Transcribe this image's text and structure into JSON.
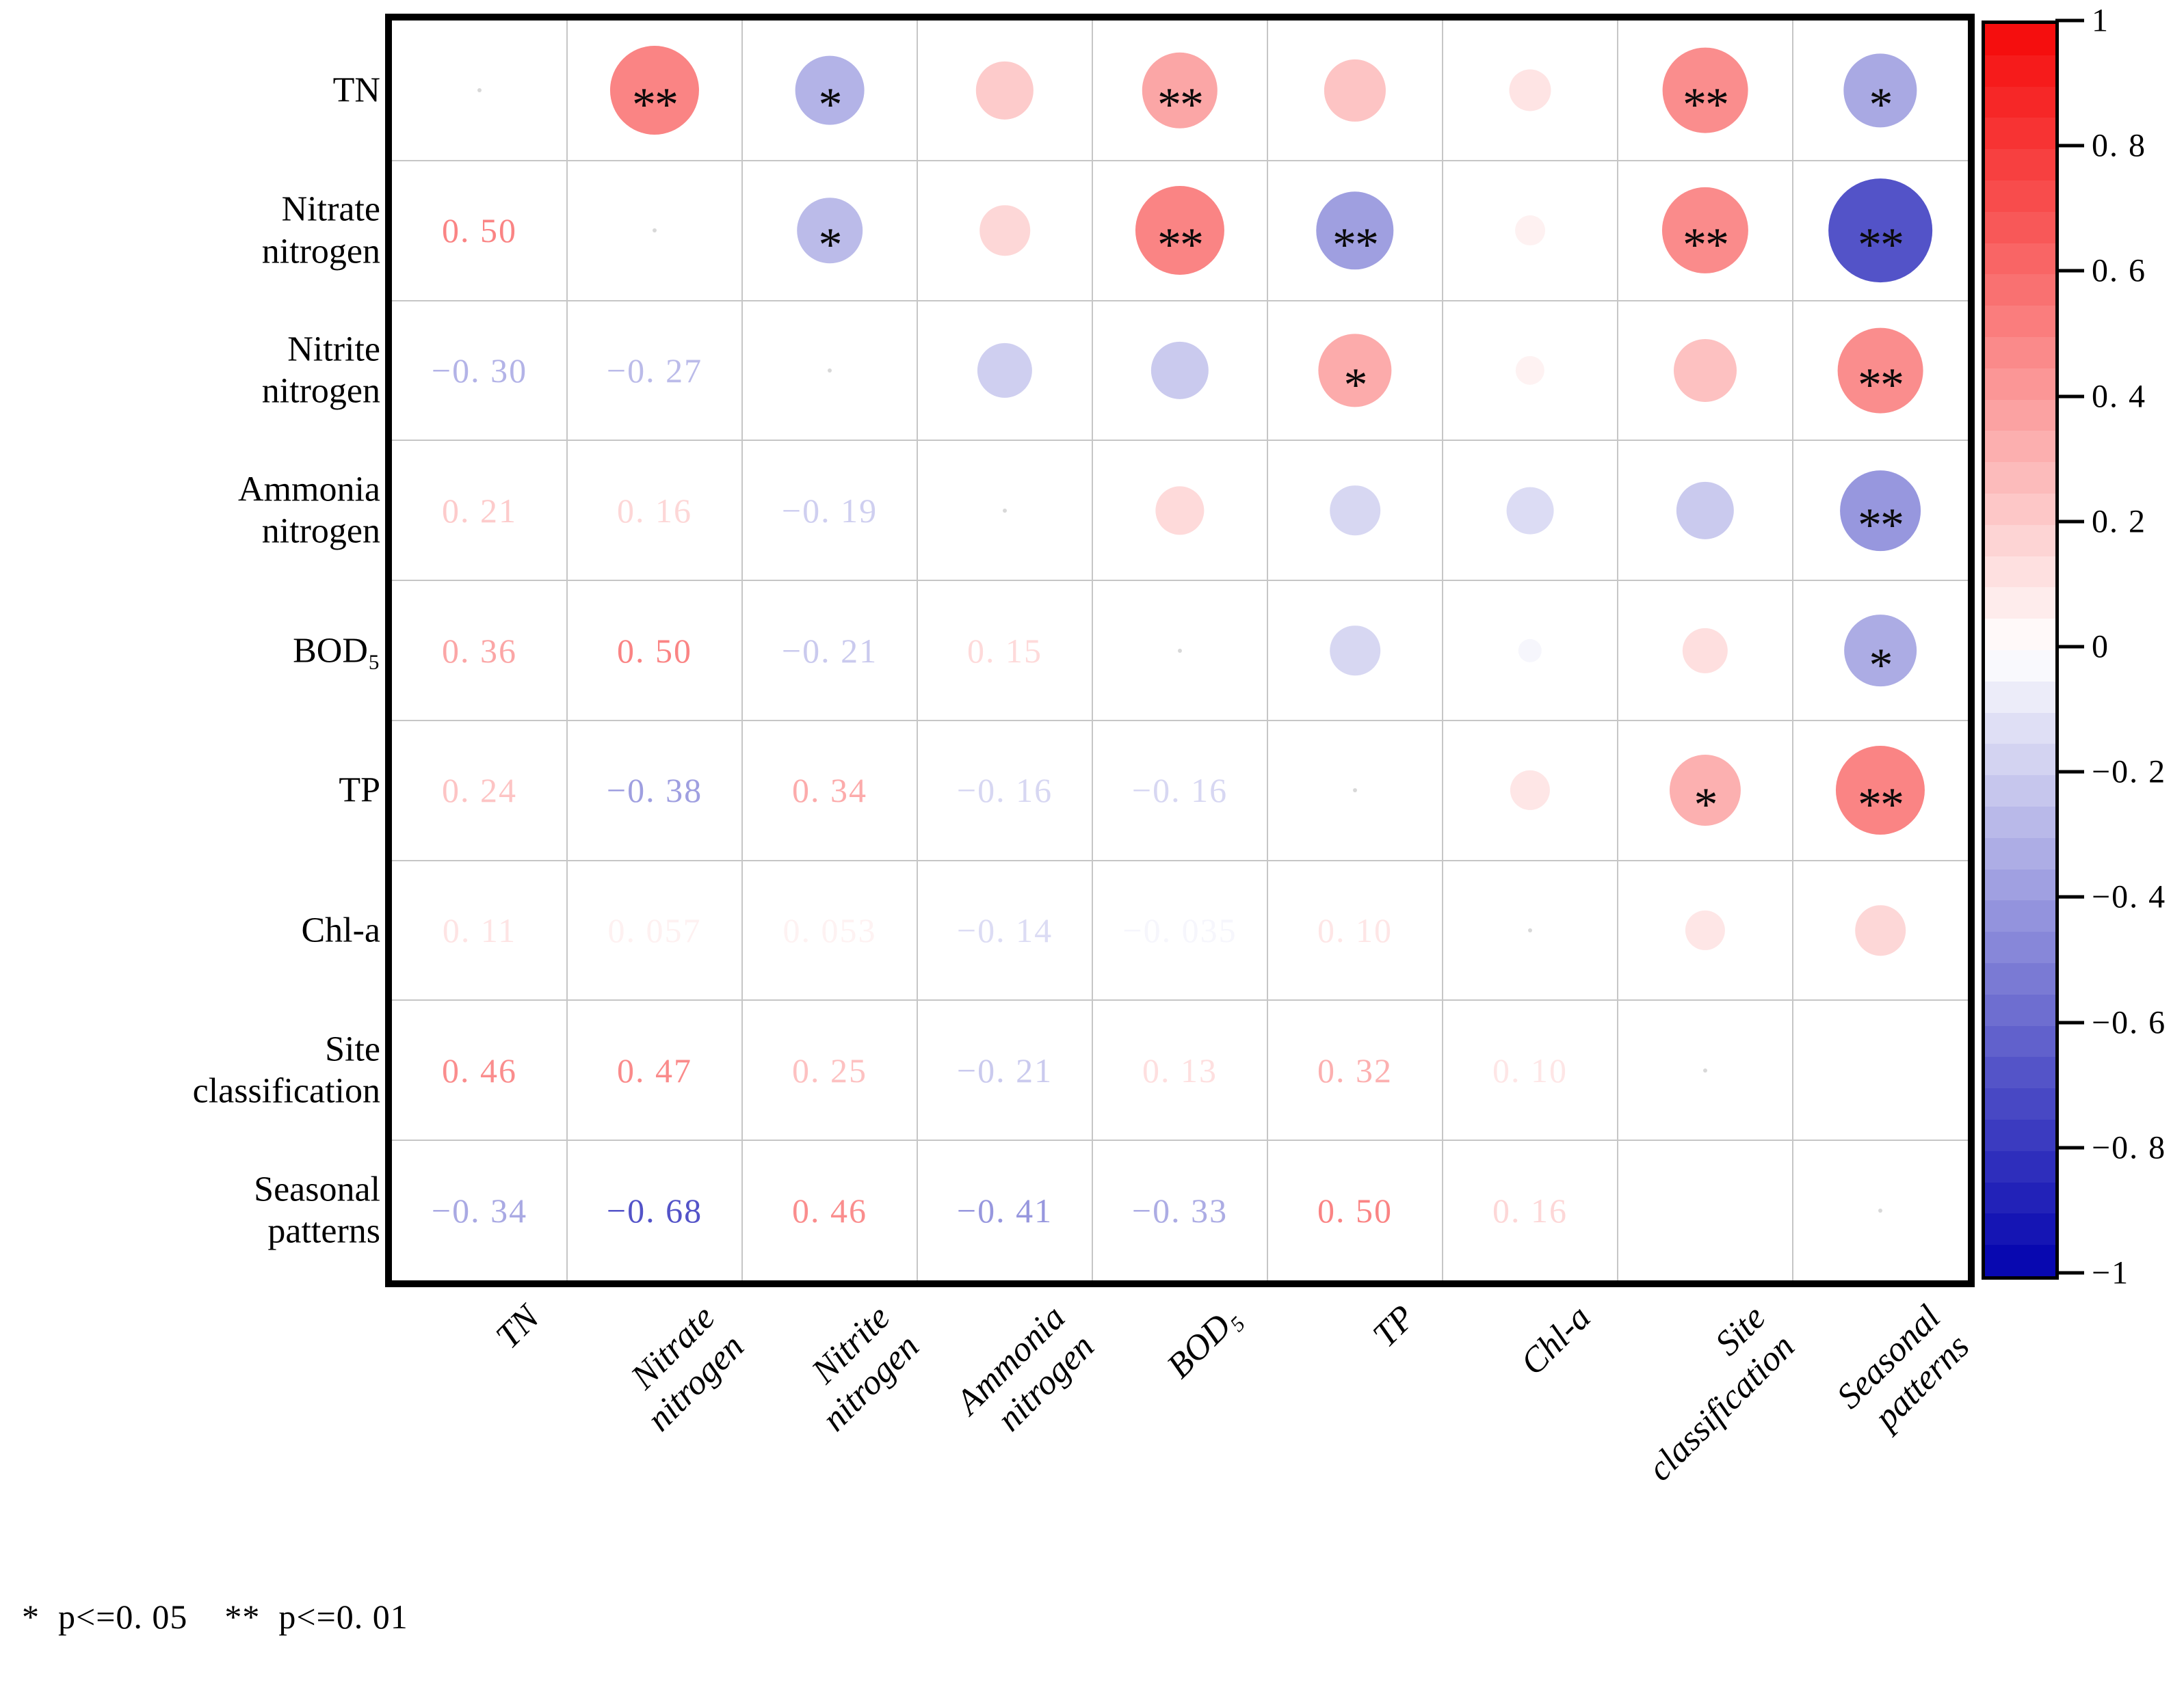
{
  "figure": {
    "background": "#ffffff",
    "footnote": "*  p<=0. 05    **  p<=0. 01"
  },
  "chart_data": {
    "type": "correlation-bubble-matrix",
    "description": "Lower triangle shows Pearson correlation values; upper triangle shows circles sized/colored by correlation with significance stars.",
    "variables": [
      "TN",
      "Nitrate nitrogen",
      "Nitrite nitrogen",
      "Ammonia nitrogen",
      "BOD₅",
      "TP",
      "Chl-a",
      "Site classification",
      "Seasonal patterns"
    ],
    "row_labels_lines": [
      [
        "TN"
      ],
      [
        "Nitrate",
        "nitrogen"
      ],
      [
        "Nitrite",
        "nitrogen"
      ],
      [
        "Ammonia",
        "nitrogen"
      ],
      [
        "BOD₅"
      ],
      [
        "TP"
      ],
      [
        "Chl-a"
      ],
      [
        "Site",
        "classification"
      ],
      [
        "Seasonal",
        "patterns"
      ]
    ],
    "col_labels_lines": [
      [
        "TN"
      ],
      [
        "Nitrate",
        "nitrogen"
      ],
      [
        "Nitrite",
        "nitrogen"
      ],
      [
        "Ammonia",
        "nitrogen"
      ],
      [
        "BOD₅"
      ],
      [
        "TP"
      ],
      [
        "Chl-a"
      ],
      [
        "Site",
        "classification"
      ],
      [
        "Seasonal",
        "patterns"
      ]
    ],
    "lower_triangle_values": [
      [
        0.5
      ],
      [
        -0.3,
        -0.27
      ],
      [
        0.21,
        0.16,
        -0.19
      ],
      [
        0.36,
        0.5,
        -0.21,
        0.15
      ],
      [
        0.24,
        -0.38,
        0.34,
        -0.16,
        -0.16
      ],
      [
        0.11,
        0.057,
        0.053,
        -0.14,
        -0.035,
        0.1
      ],
      [
        0.46,
        0.47,
        0.25,
        -0.21,
        0.13,
        0.32,
        0.1
      ],
      [
        -0.34,
        -0.68,
        0.46,
        -0.41,
        -0.33,
        0.5,
        0.16,
        0
      ]
    ],
    "lower_triangle_display": [
      [
        "0. 50"
      ],
      [
        "−0. 30",
        "−0. 27"
      ],
      [
        "0. 21",
        "0. 16",
        "−0. 19"
      ],
      [
        "0. 36",
        "0. 50",
        "−0. 21",
        "0. 15"
      ],
      [
        "0. 24",
        "−0. 38",
        "0. 34",
        "−0. 16",
        "−0. 16"
      ],
      [
        "0. 11",
        "0. 057",
        "0. 053",
        "−0. 14",
        "−0. 035",
        "0. 10"
      ],
      [
        "0. 46",
        "0. 47",
        "0. 25",
        "−0. 21",
        "0. 13",
        "0. 32",
        "0. 10"
      ],
      [
        "−0. 34",
        "−0. 68",
        "0. 46",
        "−0. 41",
        "−0. 33",
        "0. 50",
        "0. 16",
        ""
      ]
    ],
    "significance_pairs": [
      [
        "**"
      ],
      [
        "*",
        "*"
      ],
      [
        "",
        "",
        ""
      ],
      [
        "**",
        "**",
        "",
        ""
      ],
      [
        "",
        "**",
        "*",
        "",
        ""
      ],
      [
        "",
        "",
        "",
        "",
        "",
        ""
      ],
      [
        "**",
        "**",
        "",
        "",
        "",
        "*",
        ""
      ],
      [
        "*",
        "**",
        "**",
        "**",
        "*",
        "**",
        "",
        ""
      ]
    ],
    "colormap": {
      "positive_max": "#f50808",
      "zero": "#ffffff",
      "negative_max": "#0202ae"
    },
    "colorbar_ticks": [
      {
        "value": 1,
        "label": "1"
      },
      {
        "value": 0.8,
        "label": "0. 8"
      },
      {
        "value": 0.6,
        "label": "0. 6"
      },
      {
        "value": 0.4,
        "label": "0. 4"
      },
      {
        "value": 0.2,
        "label": "0. 2"
      },
      {
        "value": 0,
        "label": "0"
      },
      {
        "value": -0.2,
        "label": "−0. 2"
      },
      {
        "value": -0.4,
        "label": "−0. 4"
      },
      {
        "value": -0.6,
        "label": "−0. 6"
      },
      {
        "value": -0.8,
        "label": "−0. 8"
      },
      {
        "value": -1,
        "label": "−1"
      }
    ],
    "value_range": [
      -1,
      1
    ],
    "grid": true,
    "legend_position": "right"
  }
}
